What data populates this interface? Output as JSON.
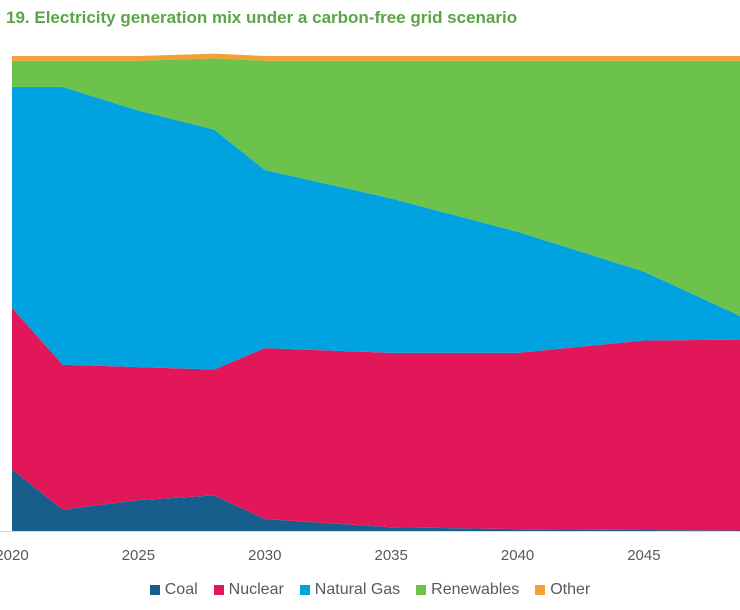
{
  "chart_data": {
    "type": "area",
    "stacked": true,
    "title": "19. Electricity generation mix under a carbon-free grid scenario",
    "xlabel": "",
    "ylabel": "",
    "x": [
      2020,
      2022,
      2025,
      2028,
      2030,
      2035,
      2040,
      2045,
      2049
    ],
    "xlim": [
      2020,
      2048.8
    ],
    "xticks": [
      "2020",
      "2025",
      "2030",
      "2035",
      "2040",
      "2045"
    ],
    "ylim": [
      0,
      100
    ],
    "grid": false,
    "legend_position": "bottom",
    "series": [
      {
        "name": "Coal",
        "color": "#175e8d",
        "values": [
          13,
          4.5,
          6.5,
          7.5,
          2.5,
          0.8,
          0.4,
          0.2,
          0.1
        ]
      },
      {
        "name": "Nuclear",
        "color": "#e2175a",
        "values": [
          34,
          30.5,
          28,
          26.5,
          36,
          36.7,
          37.1,
          39.9,
          40.2
        ]
      },
      {
        "name": "Natural Gas",
        "color": "#00a2e0",
        "values": [
          46.5,
          58.5,
          54,
          50.5,
          37.5,
          32.5,
          25.5,
          14.5,
          4.5
        ]
      },
      {
        "name": "Renewables",
        "color": "#6cc24a",
        "values": [
          5.5,
          5.5,
          10.5,
          15,
          23,
          29,
          36,
          44.4,
          54.2
        ]
      },
      {
        "name": "Other",
        "color": "#f5a034",
        "values": [
          1,
          1,
          1,
          1,
          1,
          1,
          1,
          1,
          1
        ]
      }
    ]
  }
}
